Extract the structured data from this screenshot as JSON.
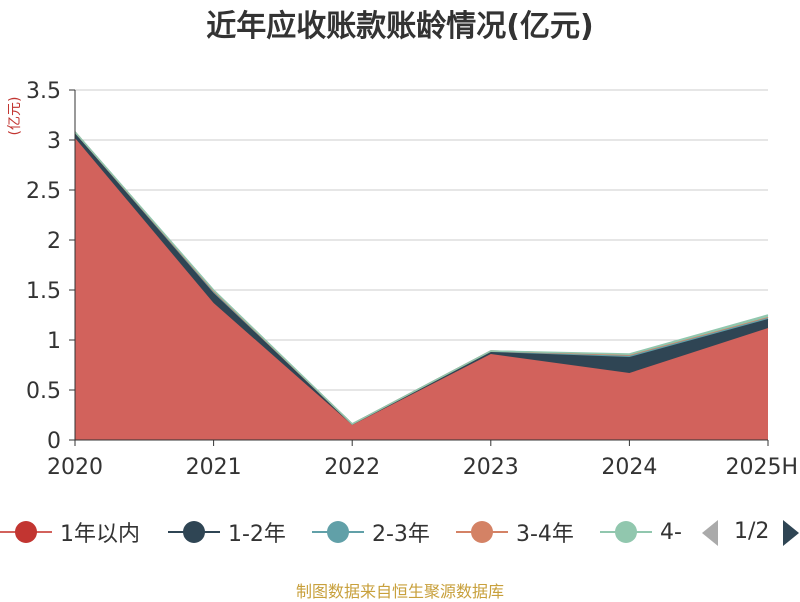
{
  "chart_data": {
    "type": "area",
    "stacked": true,
    "title": "近年应收账款账龄情况(亿元)",
    "ylabel": "(亿元)",
    "xlabel": "",
    "categories": [
      "2020",
      "2021",
      "2022",
      "2023",
      "2024",
      "2025H"
    ],
    "ylim": [
      0,
      3.5
    ],
    "y_ticks": [
      "0",
      "0.5",
      "1",
      "1.5",
      "2",
      "2.5",
      "3",
      "3.5"
    ],
    "grid": true,
    "legend_position": "bottom",
    "series": [
      {
        "name": "1年以内",
        "color": "#d2625c",
        "values": [
          3.02,
          1.37,
          0.15,
          0.86,
          0.67,
          1.12
        ]
      },
      {
        "name": "1-2年",
        "color": "#2f4554",
        "values": [
          0.05,
          0.1,
          0.01,
          0.02,
          0.16,
          0.09
        ]
      },
      {
        "name": "2-3年",
        "color": "#61a0a8",
        "values": [
          0.01,
          0.02,
          0.0,
          0.01,
          0.02,
          0.02
        ]
      },
      {
        "name": "3-4年",
        "color": "#d48265",
        "values": [
          0.0,
          0.0,
          0.0,
          0.0,
          0.0,
          0.0
        ]
      },
      {
        "name": "4-",
        "color": "#91c7ae",
        "values": [
          0.0,
          0.01,
          0.0,
          0.0,
          0.01,
          0.02
        ]
      }
    ]
  },
  "legend": {
    "items": [
      "1年以内",
      "1-2年",
      "2-3年",
      "3-4年",
      "4-"
    ],
    "page": "1/2"
  },
  "source": "制图数据来自恒生聚源数据库",
  "colors": {
    "axis": "#333333",
    "grid": "#cccccc",
    "ylabel": "#c23531",
    "source": "#c8a03c",
    "pager_inactive": "#aaaaaa",
    "pager_active": "#2f4554"
  }
}
